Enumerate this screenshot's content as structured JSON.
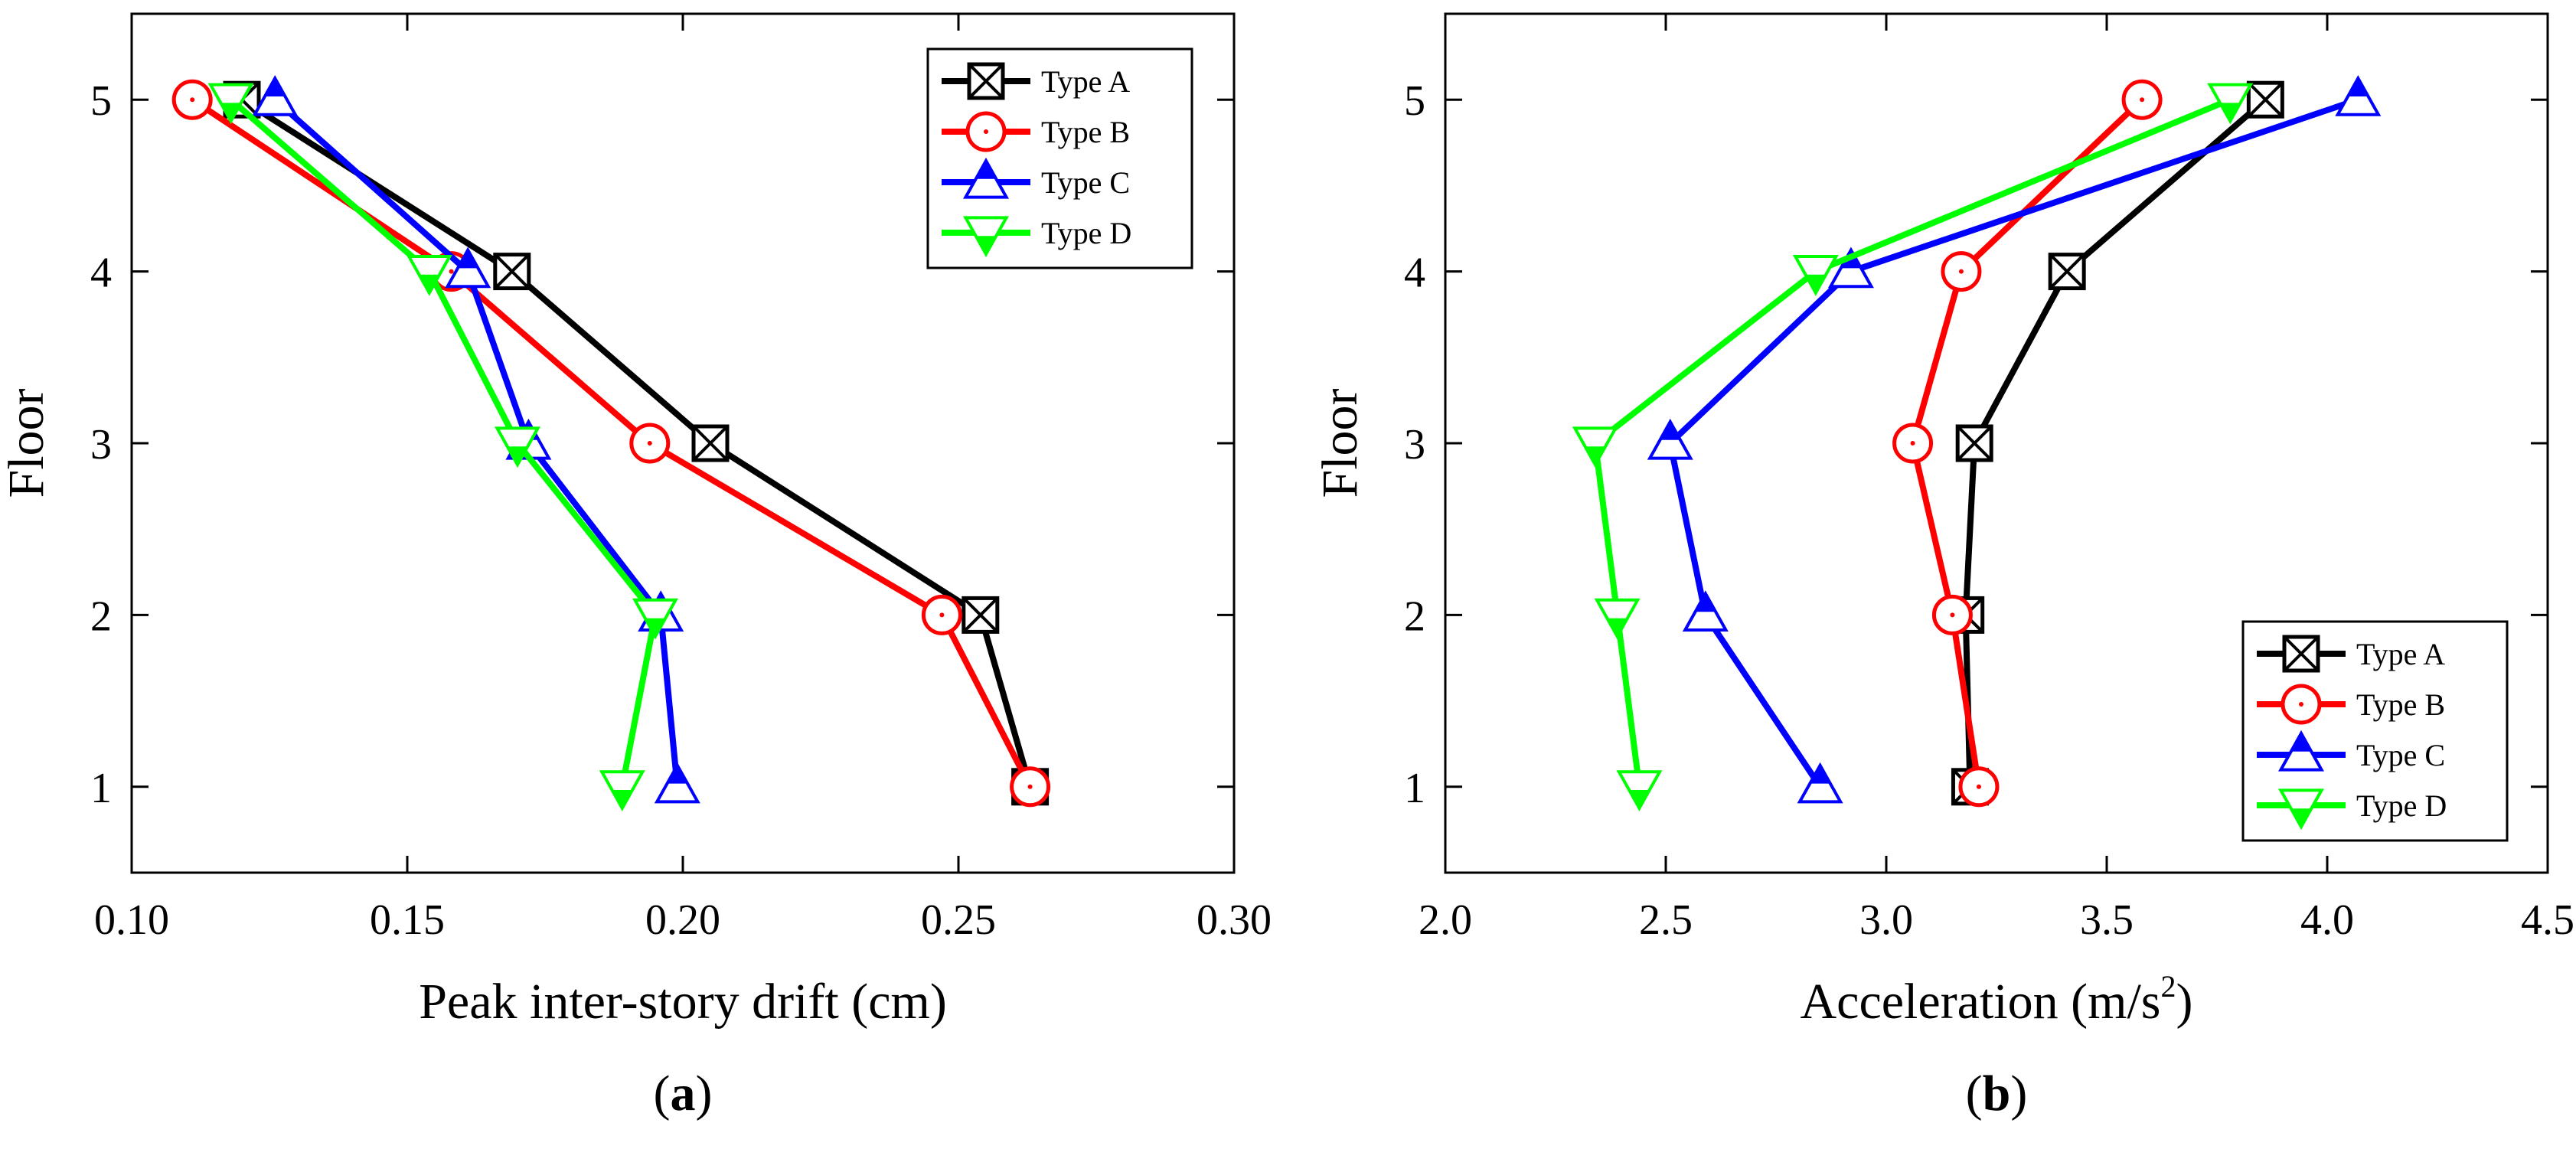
{
  "chart_data": [
    {
      "type": "line",
      "panel_label": "(a)",
      "panel_label_letter": "a",
      "xlabel": "Peak inter-story drift (cm)",
      "ylabel": "Floor",
      "xlim": [
        0.1,
        0.3
      ],
      "ylim": [
        0.5,
        5.5
      ],
      "xticks": [
        0.1,
        0.15,
        0.2,
        0.25,
        0.3
      ],
      "xtick_labels": [
        "0.10",
        "0.15",
        "0.20",
        "0.25",
        "0.30"
      ],
      "yticks": [
        1,
        2,
        3,
        4,
        5
      ],
      "ytick_labels": [
        "1",
        "2",
        "3",
        "4",
        "5"
      ],
      "legend_position": "top-right",
      "grid": false,
      "series": [
        {
          "name": "Type A",
          "color": "#000000",
          "marker": "boxed-x",
          "points": [
            [
              0.263,
              1
            ],
            [
              0.254,
              2
            ],
            [
              0.205,
              3
            ],
            [
              0.169,
              4
            ],
            [
              0.12,
              5
            ]
          ]
        },
        {
          "name": "Type B",
          "color": "#ff0000",
          "marker": "circle-dot",
          "points": [
            [
              0.263,
              1
            ],
            [
              0.247,
              2
            ],
            [
              0.194,
              3
            ],
            [
              0.158,
              4
            ],
            [
              0.111,
              5
            ]
          ]
        },
        {
          "name": "Type C",
          "color": "#0000ff",
          "marker": "half-triangle-up",
          "points": [
            [
              0.199,
              1
            ],
            [
              0.196,
              2
            ],
            [
              0.172,
              3
            ],
            [
              0.161,
              4
            ],
            [
              0.126,
              5
            ]
          ]
        },
        {
          "name": "Type D",
          "color": "#00ff00",
          "marker": "half-triangle-down",
          "points": [
            [
              0.189,
              1
            ],
            [
              0.195,
              2
            ],
            [
              0.17,
              3
            ],
            [
              0.154,
              4
            ],
            [
              0.118,
              5
            ]
          ]
        }
      ]
    },
    {
      "type": "line",
      "panel_label": "(b)",
      "panel_label_letter": "b",
      "xlabel": "Acceleration (m/s",
      "xlabel_sup": "2",
      "xlabel_close": ")",
      "ylabel": "Floor",
      "xlim": [
        2.0,
        4.5
      ],
      "ylim": [
        0.5,
        5.5
      ],
      "xticks": [
        2.0,
        2.5,
        3.0,
        3.5,
        4.0,
        4.5
      ],
      "xtick_labels": [
        "2.0",
        "2.5",
        "3.0",
        "3.5",
        "4.0",
        "4.5"
      ],
      "yticks": [
        1,
        2,
        3,
        4,
        5
      ],
      "ytick_labels": [
        "1",
        "2",
        "3",
        "4",
        "5"
      ],
      "legend_position": "bottom-right",
      "grid": false,
      "series": [
        {
          "name": "Type A",
          "color": "#000000",
          "marker": "boxed-x",
          "points": [
            [
              3.19,
              1
            ],
            [
              3.18,
              2
            ],
            [
              3.2,
              3
            ],
            [
              3.41,
              4
            ],
            [
              3.86,
              5
            ]
          ]
        },
        {
          "name": "Type B",
          "color": "#ff0000",
          "marker": "circle-dot",
          "points": [
            [
              3.21,
              1
            ],
            [
              3.15,
              2
            ],
            [
              3.06,
              3
            ],
            [
              3.17,
              4
            ],
            [
              3.58,
              5
            ]
          ]
        },
        {
          "name": "Type C",
          "color": "#0000ff",
          "marker": "half-triangle-up",
          "points": [
            [
              2.85,
              1
            ],
            [
              2.59,
              2
            ],
            [
              2.51,
              3
            ],
            [
              2.92,
              4
            ],
            [
              4.07,
              5
            ]
          ]
        },
        {
          "name": "Type D",
          "color": "#00ff00",
          "marker": "half-triangle-down",
          "points": [
            [
              2.44,
              1
            ],
            [
              2.39,
              2
            ],
            [
              2.34,
              3
            ],
            [
              2.84,
              4
            ],
            [
              3.78,
              5
            ]
          ]
        }
      ]
    }
  ]
}
